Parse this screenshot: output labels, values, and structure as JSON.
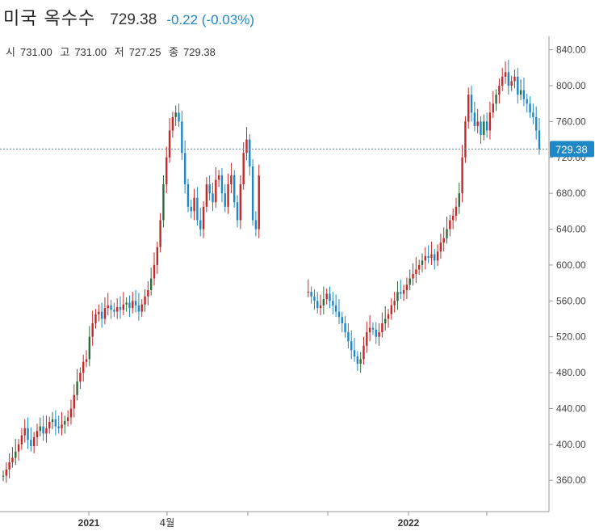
{
  "header": {
    "title": "미국 옥수수",
    "last": "729.38",
    "change": "-0.22 (-0.03%)",
    "change_color": "#1e88c6"
  },
  "ohlc": {
    "open_label": "시",
    "open": "731.00",
    "high_label": "고",
    "high": "731.00",
    "low_label": "저",
    "low": "727.25",
    "close_label": "종",
    "close": "729.38"
  },
  "colors": {
    "up": "#c62828",
    "down": "#1e88c6",
    "neutral": "#2e6b3a",
    "price_line": "#5b7fb3",
    "badge": "#1e88c6"
  },
  "chart_data": {
    "type": "candlestick",
    "title": "",
    "xlabel": "",
    "ylabel": "",
    "ylim": [
      325,
      855
    ],
    "yticks": [
      "360.00",
      "400.00",
      "440.00",
      "480.00",
      "520.00",
      "560.00",
      "600.00",
      "640.00",
      "680.00",
      "720.00",
      "760.00",
      "800.00",
      "840.00"
    ],
    "xticks": [
      "2021",
      "4월",
      "",
      "",
      "2022",
      ""
    ],
    "current_price": 729.38,
    "current_price_label": "729.38",
    "grid": false,
    "series": [
      {
        "values": [
          365,
          372,
          380,
          385,
          392,
          400,
          410,
          418,
          405,
          398,
          408,
          415,
          420,
          412,
          418,
          425,
          428,
          420,
          418,
          422,
          426,
          430,
          440,
          455,
          470,
          480,
          492,
          495,
          520,
          535,
          545,
          548,
          540,
          552,
          555,
          550,
          548,
          553,
          550,
          556,
          558,
          552,
          560,
          555,
          548,
          556,
          565,
          572,
          585,
          600,
          620,
          650,
          690,
          720,
          750,
          765,
          770,
          760,
          725,
          690,
          665,
          660,
          675,
          650,
          640,
          665,
          690,
          680,
          670,
          695,
          700,
          680,
          665,
          690,
          700,
          670,
          650,
          690,
          725,
          740,
          710,
          650,
          640,
          700,
          null,
          null,
          null,
          null,
          null,
          null,
          null,
          null,
          null,
          null,
          null,
          null,
          null,
          null,
          null,
          570,
          565,
          560,
          552,
          555,
          562,
          568,
          560,
          555,
          548,
          542,
          535,
          525,
          515,
          505,
          498,
          490,
          495,
          510,
          525,
          530,
          528,
          520,
          525,
          535,
          540,
          545,
          555,
          560,
          570,
          568,
          572,
          578,
          585,
          590,
          595,
          600,
          605,
          610,
          608,
          612,
          605,
          615,
          625,
          630,
          640,
          650,
          655,
          665,
          680,
          720,
          760,
          790,
          770,
          755,
          760,
          745,
          760,
          750,
          770,
          780,
          790,
          800,
          810,
          815,
          800,
          805,
          810,
          790,
          795,
          785,
          780,
          770,
          765,
          750,
          729
        ]
      }
    ]
  }
}
